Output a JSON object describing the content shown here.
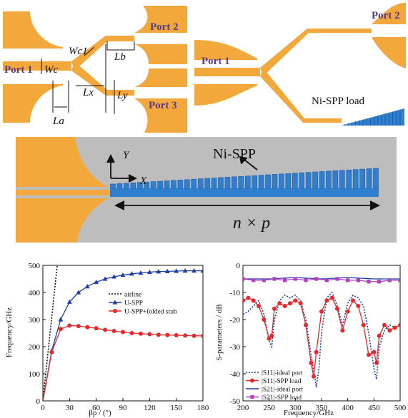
{
  "colors": {
    "gold": "#f2a83a",
    "blue": "#2f7fcf",
    "blue_dark": "#1e5aa8",
    "gray_bg": "#bdbdbd",
    "red": "#e8282a",
    "navy": "#1f3fa8",
    "purple": "#b040c0"
  },
  "panel_a": {
    "port1": "Port 1",
    "port2": "Port 2",
    "port3": "Port 3",
    "wc1": "Wc1",
    "wc": "Wc",
    "lb": "Lb",
    "lx": "Lx",
    "ly": "Ly",
    "la": "La"
  },
  "panel_b": {
    "port1": "Port 1",
    "port2": "Port 2",
    "load": "Ni-SPP load"
  },
  "panel_c": {
    "y": "Y",
    "x": "X",
    "title": "Ni-SPP",
    "length": "n × p"
  },
  "chart_data": [
    {
      "type": "line",
      "xlabel": "βp / (°)",
      "ylabel": "Frequency/GHz",
      "xlim": [
        0,
        180
      ],
      "ylim": [
        0,
        500
      ],
      "xticks": [
        0,
        30,
        60,
        90,
        120,
        150,
        180
      ],
      "yticks": [
        0,
        100,
        200,
        300,
        400,
        500
      ],
      "legend_position": "center-right",
      "series": [
        {
          "name": "airline",
          "style": "dotted",
          "color": "#111111",
          "x": [
            0,
            20
          ],
          "y": [
            0,
            620
          ]
        },
        {
          "name": "U-SPP",
          "marker": "triangle",
          "color": "#1f3fa8",
          "x": [
            0,
            10,
            20,
            30,
            40,
            50,
            60,
            70,
            80,
            90,
            100,
            110,
            120,
            130,
            140,
            150,
            160,
            170,
            180
          ],
          "y": [
            0,
            185,
            300,
            365,
            400,
            422,
            438,
            450,
            458,
            464,
            469,
            472,
            475,
            477,
            478,
            479,
            480,
            480,
            480
          ]
        },
        {
          "name": "U-SPP+folded stub",
          "marker": "circle",
          "color": "#e8282a",
          "x": [
            0,
            10,
            20,
            30,
            40,
            50,
            60,
            70,
            80,
            90,
            100,
            110,
            120,
            130,
            140,
            150,
            160,
            170,
            180
          ],
          "y": [
            0,
            180,
            265,
            278,
            276,
            272,
            268,
            262,
            258,
            254,
            250,
            248,
            246,
            244,
            243,
            242,
            241,
            240,
            240
          ]
        }
      ]
    },
    {
      "type": "line",
      "xlabel": "Frequency/GHz",
      "ylabel": "S-parameters / dB",
      "xlim": [
        200,
        500
      ],
      "ylim": [
        -50,
        0
      ],
      "xticks": [
        200,
        250,
        300,
        350,
        400,
        450,
        500
      ],
      "yticks": [
        0,
        -10,
        -20,
        -30,
        -40,
        -50
      ],
      "legend_position": "bottom-left",
      "series": [
        {
          "name": "|S11|-ideal port",
          "style": "dotted",
          "color": "#1f3fa8",
          "x": [
            200,
            210,
            220,
            230,
            240,
            250,
            255,
            260,
            270,
            280,
            290,
            300,
            310,
            320,
            330,
            340,
            345,
            350,
            360,
            370,
            380,
            390,
            400,
            410,
            420,
            430,
            440,
            450,
            455,
            460,
            470,
            480,
            490,
            500
          ],
          "y": [
            -18,
            -17,
            -15,
            -13,
            -18,
            -28,
            -30,
            -20,
            -13,
            -11,
            -12,
            -11,
            -13,
            -20,
            -33,
            -45,
            -38,
            -25,
            -12,
            -10,
            -15,
            -22,
            -14,
            -11,
            -12,
            -15,
            -25,
            -38,
            -42,
            -30,
            -24,
            -22,
            -23,
            -22
          ]
        },
        {
          "name": "|S11|-SPP load",
          "marker": "circle",
          "color": "#e8282a",
          "x": [
            200,
            210,
            220,
            230,
            240,
            250,
            255,
            260,
            270,
            280,
            290,
            300,
            310,
            320,
            330,
            335,
            340,
            350,
            360,
            370,
            380,
            390,
            400,
            410,
            420,
            430,
            440,
            450,
            455,
            460,
            470,
            480,
            490,
            500
          ],
          "y": [
            -13,
            -12,
            -13,
            -15,
            -20,
            -27,
            -26,
            -16,
            -14,
            -15,
            -14,
            -13,
            -14,
            -22,
            -36,
            -41,
            -32,
            -17,
            -13,
            -12,
            -16,
            -24,
            -17,
            -13,
            -15,
            -22,
            -33,
            -32,
            -36,
            -26,
            -22,
            -24,
            -23,
            -22
          ]
        },
        {
          "name": "|S21|-ideal port",
          "style": "solid",
          "color": "#1f3fa8",
          "x": [
            200,
            250,
            300,
            350,
            400,
            450,
            500
          ],
          "y": [
            -5,
            -5,
            -4.5,
            -5,
            -4.5,
            -5,
            -5
          ]
        },
        {
          "name": "|S21|-SPP load",
          "marker": "square",
          "color": "#b040c0",
          "x": [
            200,
            220,
            240,
            260,
            280,
            300,
            320,
            340,
            360,
            380,
            400,
            420,
            440,
            460,
            480,
            500
          ],
          "y": [
            -5,
            -5.5,
            -5.5,
            -5,
            -5.5,
            -5,
            -5.5,
            -5,
            -5.5,
            -5,
            -5.5,
            -5.5,
            -6,
            -6,
            -5.5,
            -5.5
          ]
        }
      ]
    }
  ]
}
